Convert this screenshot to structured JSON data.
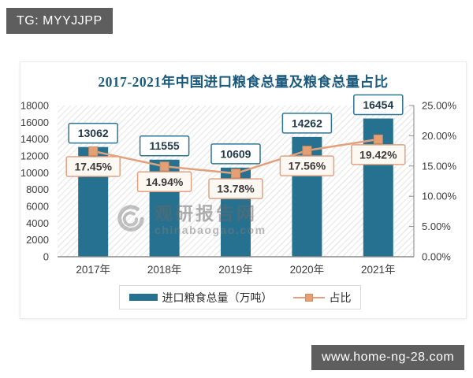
{
  "overlays": {
    "tg_banner": "TG: MYYJJPP",
    "url_banner": "www.home-ng-28.com"
  },
  "watermark": {
    "name": "观研报告网",
    "domain": "chinabaogao.com"
  },
  "chart_data": {
    "type": "bar",
    "title": "2017-2021年中国进口粮食总量及粮食总量占比",
    "categories": [
      "2017年",
      "2018年",
      "2019年",
      "2020年",
      "2021年"
    ],
    "series": [
      {
        "name": "进口粮食总量（万吨）",
        "kind": "bar",
        "axis": "left",
        "values": [
          13062,
          11555,
          10609,
          14262,
          16454
        ],
        "value_labels": [
          "13062",
          "11555",
          "10609",
          "14262",
          "16454"
        ]
      },
      {
        "name": "占比",
        "kind": "line",
        "axis": "right",
        "values": [
          17.45,
          14.94,
          13.78,
          17.56,
          19.42
        ],
        "value_labels": [
          "17.45%",
          "14.94%",
          "13.78%",
          "17.56%",
          "19.42%"
        ]
      }
    ],
    "left_axis": {
      "min": 0,
      "max": 18000,
      "step": 2000,
      "tick_labels": [
        "0",
        "2000",
        "4000",
        "6000",
        "8000",
        "10000",
        "12000",
        "14000",
        "16000",
        "18000"
      ]
    },
    "right_axis": {
      "min": 0,
      "max": 25,
      "step": 5,
      "tick_labels": [
        "0.00%",
        "5.00%",
        "10.00%",
        "15.00%",
        "20.00%",
        "25.00%"
      ]
    },
    "legend_position": "bottom",
    "grid": false,
    "colors": {
      "bar": "#26718f",
      "line": "#e2a17c",
      "marker_fill": "#e4a074",
      "marker_stroke": "#cf8d62",
      "value_box_bg": "#ffffff",
      "value_box_border": "#2e7493",
      "value_text": "#1f3848",
      "pct_box_bg": "#fdf8f2",
      "pct_box_border": "#e0a284",
      "pct_text": "#3b3b3b",
      "title": "#1a5a7c",
      "axis_text": "#3c3c3c",
      "axis_line": "#8a8a8a"
    }
  }
}
